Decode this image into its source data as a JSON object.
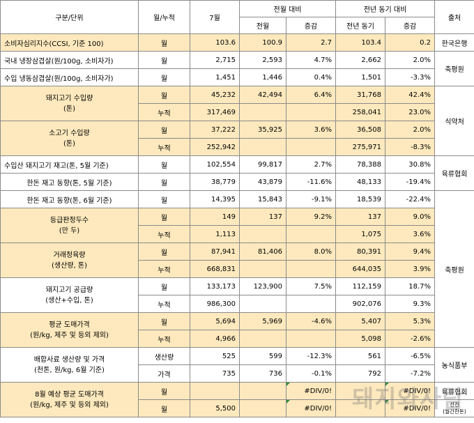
{
  "header": {
    "category": "구분/단위",
    "period": "월/누적",
    "month": "7월",
    "mom_group": "전월 대비",
    "yoy_group": "전년 동기 대비",
    "source": "출처",
    "prev_month": "전월",
    "change": "증감",
    "prev_year": "전년 동기"
  },
  "labels": {
    "month": "월",
    "cumulative": "누적",
    "production": "생산량",
    "price": "가격"
  },
  "rows": {
    "ccsi": {
      "name": "소비자심리지수(CCSI, 기준 100)",
      "value": "103.6",
      "prev": "100.9",
      "mom": "2.7",
      "yoy_prev": "103.4",
      "yoy": "0.2",
      "source": "한국은행"
    },
    "dom_belly": {
      "name": "국내 냉장삼겹살(원/100g, 소비자가)",
      "value": "2,715",
      "prev": "2,593",
      "mom": "4.7%",
      "yoy_prev": "2,662",
      "yoy": "2.0%"
    },
    "imp_belly": {
      "name": "수입 냉동삼겹살(원/100g, 소비자가)",
      "value": "1,451",
      "prev": "1,446",
      "mom": "0.4%",
      "yoy_prev": "1,501",
      "yoy": "-3.3%"
    },
    "pork_import": {
      "name1": "돼지고기 수입량",
      "name2": "(톤)",
      "m_value": "45,232",
      "m_prev": "42,494",
      "m_mom": "6.4%",
      "m_yoy_prev": "31,768",
      "m_yoy": "42.4%",
      "c_value": "317,469",
      "c_yoy_prev": "258,041",
      "c_yoy": "23.0%"
    },
    "beef_import": {
      "name1": "소고기 수입량",
      "name2": "(톤)",
      "m_value": "37,222",
      "m_prev": "35,925",
      "m_mom": "3.6%",
      "m_yoy_prev": "36,508",
      "m_yoy": "2.0%",
      "c_value": "252,942",
      "c_yoy_prev": "275,971",
      "c_yoy": "-8.3%"
    },
    "imp_stock": {
      "name": "수입산 돼지고기 재고(톤, 5월 기준)",
      "value": "102,554",
      "prev": "99,817",
      "mom": "2.7%",
      "yoy_prev": "78,388",
      "yoy": "30.8%"
    },
    "handon_stock5": {
      "name": "한돈 재고 동향(톤, 5월 기준)",
      "value": "38,779",
      "prev": "43,879",
      "mom": "-11.6%",
      "yoy_prev": "48,133",
      "yoy": "-19.4%"
    },
    "handon_stock6": {
      "name": "한돈 재고 동향(톤, 6월 기준)",
      "value": "14,395",
      "prev": "15,843",
      "mom": "-9.1%",
      "yoy_prev": "18,539",
      "yoy": "-22.4%"
    },
    "graded": {
      "name1": "등급판정두수",
      "name2": "(만 두)",
      "m_value": "149",
      "m_prev": "137",
      "m_mom": "9.2%",
      "m_yoy_prev": "137",
      "m_yoy": "9.0%",
      "c_value": "1,113",
      "c_yoy_prev": "1,075",
      "c_yoy": "3.6%"
    },
    "trade": {
      "name1": "거래정육량",
      "name2": "(생산량, 톤)",
      "m_value": "87,941",
      "m_prev": "81,406",
      "m_mom": "8.0%",
      "m_yoy_prev": "80,391",
      "m_yoy": "9.4%",
      "c_value": "668,831",
      "c_yoy_prev": "644,035",
      "c_yoy": "3.9%"
    },
    "supply": {
      "name1": "돼지고기 공급량",
      "name2": "(생산+수입, 톤)",
      "m_value": "133,173",
      "m_prev": "123,900",
      "m_mom": "7.5%",
      "m_yoy_prev": "112,159",
      "m_yoy": "18.7%",
      "c_value": "986,300",
      "c_yoy_prev": "902,076",
      "c_yoy": "9.3%"
    },
    "wholesale": {
      "name1": "평균 도매가격",
      "name2": "(원/kg, 제주 및 등외 제외)",
      "m_value": "5,694",
      "m_prev": "5,969",
      "m_mom": "-4.6%",
      "m_yoy_prev": "5,407",
      "m_yoy": "5.3%",
      "c_value": "4,966",
      "c_yoy_prev": "5,098",
      "c_yoy": "-2.6%"
    },
    "feed": {
      "name1": "배합사료 생산량 및 가격",
      "name2": "(천톤, 원/kg, 6월 기준)",
      "p_value": "525",
      "p_prev": "599",
      "p_mom": "-12.3%",
      "p_yoy_prev": "561",
      "p_yoy": "-6.5%",
      "q_value": "735",
      "q_prev": "736",
      "q_mom": "-0.1%",
      "q_yoy_prev": "792",
      "q_yoy": "-7.2%",
      "source": "농식품부"
    },
    "forecast": {
      "name1": "8월 예상 평균 도매가격",
      "name2": "(원/kg, 제주 및 등외 제외)",
      "m_value": "",
      "m_mom": "#DIV/0!",
      "m_yoy": "#DIV/0!",
      "c_value": "5,500",
      "c_mom": "#DIV/0!",
      "c_yoy": "#DIV/0!",
      "source1": "육류협회",
      "source2a": "선진",
      "source2b": "(월간한돈)"
    }
  },
  "sources": {
    "kape1": "축평원",
    "mfds": "식약처",
    "meat_assoc": "육류협회",
    "kape2": "축평원"
  },
  "watermark": "돼지와사람",
  "colors": {
    "highlight": "#fde9bd",
    "negative": "#ff0000",
    "border": "#8a8a8a"
  }
}
